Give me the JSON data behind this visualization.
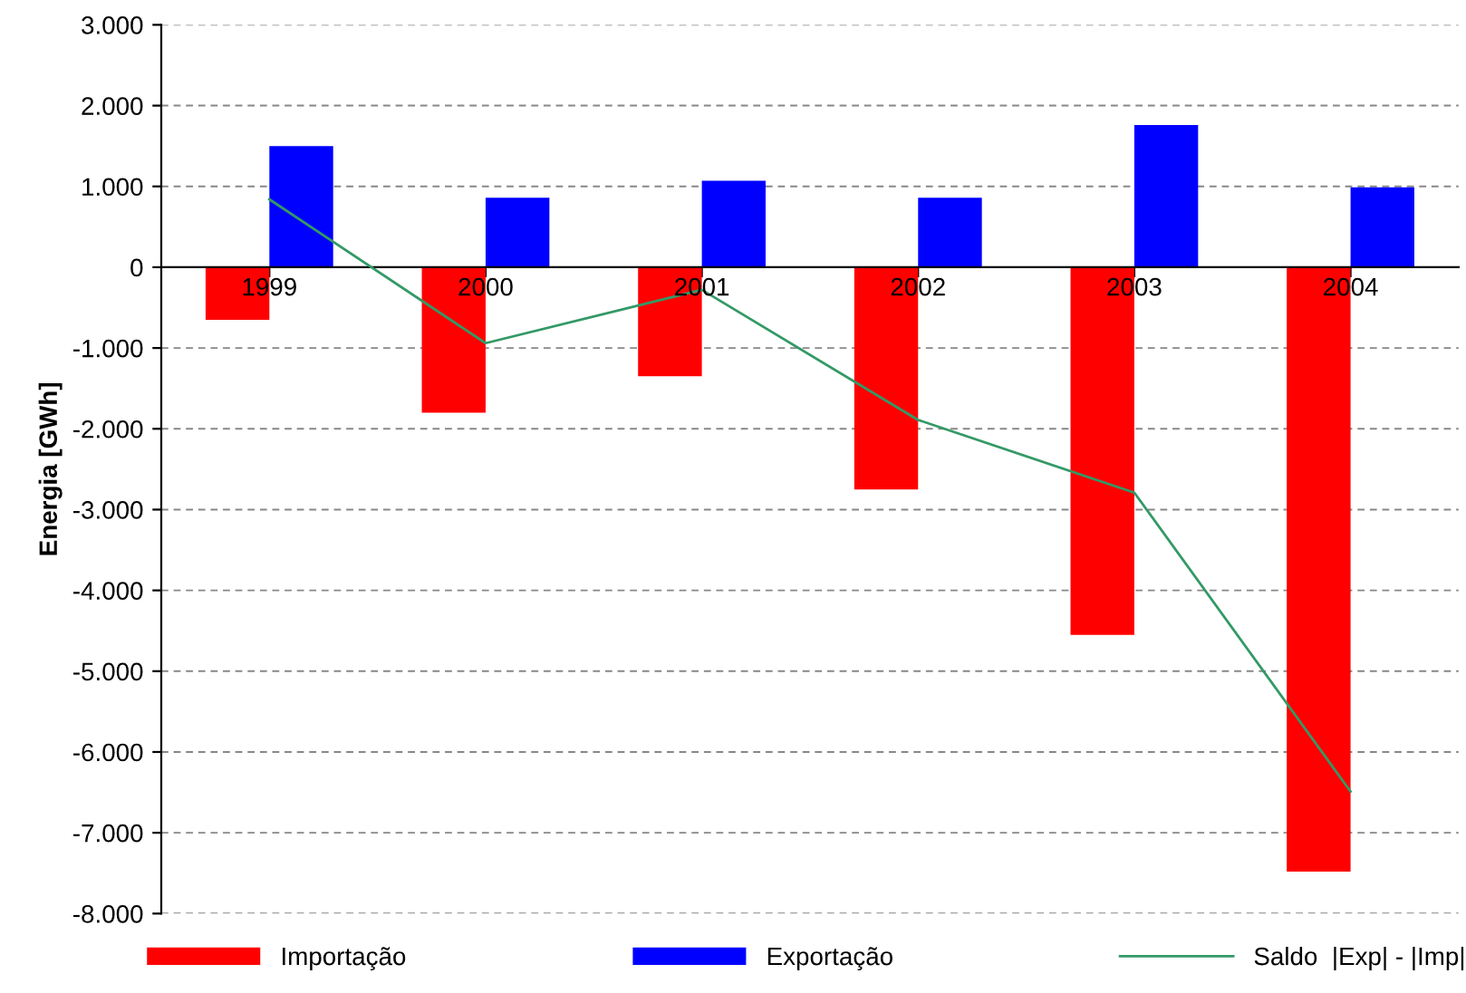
{
  "chart_data": {
    "type": "bar",
    "ylabel": "Energia [GWh]",
    "categories": [
      "1999",
      "2000",
      "2001",
      "2002",
      "2003",
      "2004"
    ],
    "series": [
      {
        "name": "Importação",
        "color": "#ff0000",
        "values": [
          -650,
          -1800,
          -1350,
          -2750,
          -4550,
          -7480
        ]
      },
      {
        "name": "Exportação",
        "color": "#0000ff",
        "values": [
          1500,
          860,
          1070,
          860,
          1760,
          990
        ]
      },
      {
        "name": "Saldo  |Exp| - |Imp|",
        "type": "line",
        "color": "#339966",
        "values": [
          840,
          -940,
          -280,
          -1890,
          -2790,
          -6490
        ]
      }
    ],
    "ylim": [
      -8000,
      3000
    ],
    "yticks": [
      {
        "value": 3000,
        "label": "3.000"
      },
      {
        "value": 2000,
        "label": "2.000"
      },
      {
        "value": 1000,
        "label": "1.000"
      },
      {
        "value": 0,
        "label": "0"
      },
      {
        "value": -1000,
        "label": "-1.000"
      },
      {
        "value": -2000,
        "label": "-2.000"
      },
      {
        "value": -3000,
        "label": "-3.000"
      },
      {
        "value": -4000,
        "label": "-4.000"
      },
      {
        "value": -5000,
        "label": "-5.000"
      },
      {
        "value": -6000,
        "label": "-6.000"
      },
      {
        "value": -7000,
        "label": "-7.000"
      },
      {
        "value": -8000,
        "label": "-8.000"
      }
    ],
    "grid": "y",
    "legend": "bottom",
    "marker": "none",
    "line_style": "solid"
  }
}
